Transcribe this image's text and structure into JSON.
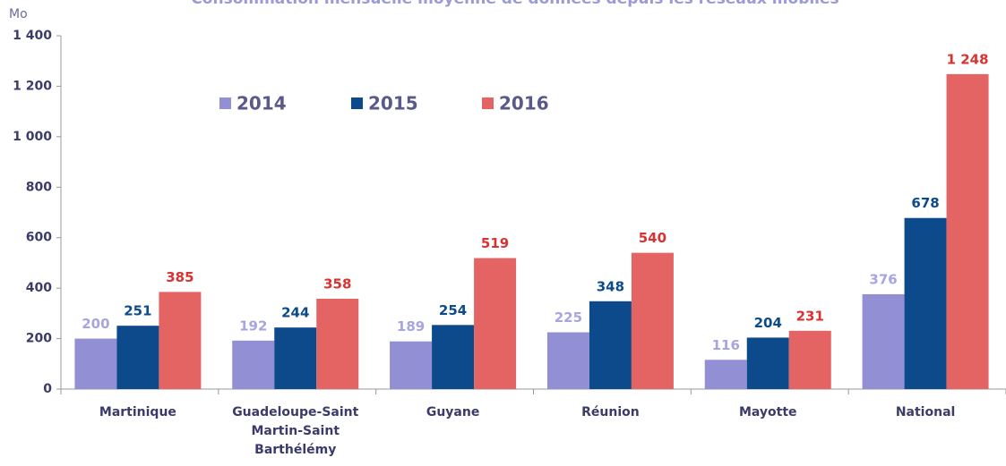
{
  "chart_data": {
    "type": "bar",
    "title": "Consommation mensuelle moyenne de données depuis les réseaux mobiles",
    "y_unit": "Mo",
    "categories": [
      "Martinique",
      "Guadeloupe-Saint Martin-Saint Barthélémy",
      "Guyane",
      "Réunion",
      "Mayotte",
      "National"
    ],
    "series": [
      {
        "name": "2014",
        "color": "#928fd4",
        "label_color": "#a7a4e0",
        "values": [
          200,
          192,
          189,
          225,
          116,
          376
        ]
      },
      {
        "name": "2015",
        "color": "#0c4a8c",
        "label_color": "#0c4a8c",
        "values": [
          251,
          244,
          254,
          348,
          204,
          678
        ]
      },
      {
        "name": "2016",
        "color": "#e46464",
        "label_color": "#d83232",
        "values": [
          385,
          358,
          519,
          540,
          231,
          1248
        ],
        "value_labels": [
          "385",
          "358",
          "519",
          "540",
          "231",
          "1 248"
        ]
      }
    ],
    "ylim": [
      0,
      1400
    ],
    "yticks": [
      0,
      200,
      400,
      600,
      800,
      {
        "value": 1000,
        "label": "1 000"
      },
      {
        "value": 1200,
        "label": "1 200"
      },
      {
        "value": 1400,
        "label": "1 400"
      }
    ],
    "legend": "top-left"
  }
}
